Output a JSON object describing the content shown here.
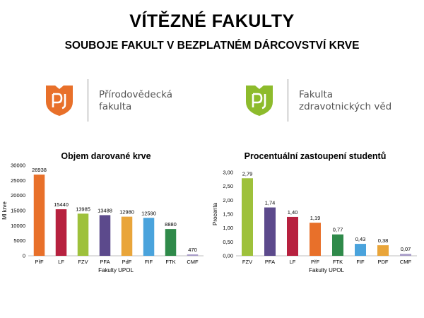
{
  "header": {
    "title": "VÍTĚZNÉ FAKULTY",
    "subtitle": "SOUBOJE FAKULT V BEZPLATNÉM DÁRCOVSTVÍ KRVE"
  },
  "faculties": [
    {
      "name_lines": [
        "Přírodovědecká",
        "fakulta"
      ],
      "color": "#e8702a",
      "icon": "upol-shield-icon"
    },
    {
      "name_lines": [
        "Fakulta",
        "zdravotnických věd"
      ],
      "color": "#8dbb2c",
      "icon": "upol-shield-icon"
    }
  ],
  "chart_data": [
    {
      "type": "bar",
      "title": "Objem darované krve",
      "xlabel": "Fakulty UPOL",
      "ylabel": "Ml krve",
      "ylim": [
        0,
        30000
      ],
      "yticks": [
        "0",
        "5000",
        "10000",
        "15000",
        "20000",
        "25000",
        "30000"
      ],
      "categories": [
        "PřF",
        "LF",
        "FZV",
        "PFA",
        "PdF",
        "FIF",
        "FTK",
        "CMF"
      ],
      "values": [
        26938,
        15440,
        13985,
        13488,
        12980,
        12590,
        8880,
        470
      ],
      "value_labels": [
        "26938",
        "15440",
        "13985",
        "13488",
        "12980",
        "12590",
        "8880",
        "470"
      ],
      "colors": [
        "#e8702a",
        "#b7213f",
        "#9ec13b",
        "#5c4a8c",
        "#e9a53a",
        "#4aa3dc",
        "#2f8a4a",
        "#a89cc8"
      ],
      "grid": false
    },
    {
      "type": "bar",
      "title": "Procentuální zastoupení studentů",
      "xlabel": "Fakulty UPOL",
      "ylabel": "Procenta",
      "ylim": [
        0,
        3
      ],
      "yticks": [
        "0,00",
        "0,50",
        "1,00",
        "1,50",
        "2,00",
        "2,50",
        "3,00"
      ],
      "categories": [
        "FZV",
        "PFA",
        "LF",
        "PřF",
        "FTK",
        "FIF",
        "PDF",
        "CMF"
      ],
      "values": [
        2.79,
        1.74,
        1.4,
        1.19,
        0.77,
        0.43,
        0.38,
        0.07
      ],
      "value_labels": [
        "2,79",
        "1,74",
        "1,40",
        "1,19",
        "0,77",
        "0,43",
        "0,38",
        "0,07"
      ],
      "colors": [
        "#9ec13b",
        "#5c4a8c",
        "#b7213f",
        "#e8702a",
        "#2f8a4a",
        "#4aa3dc",
        "#e9a53a",
        "#a89cc8"
      ],
      "grid": false
    }
  ]
}
